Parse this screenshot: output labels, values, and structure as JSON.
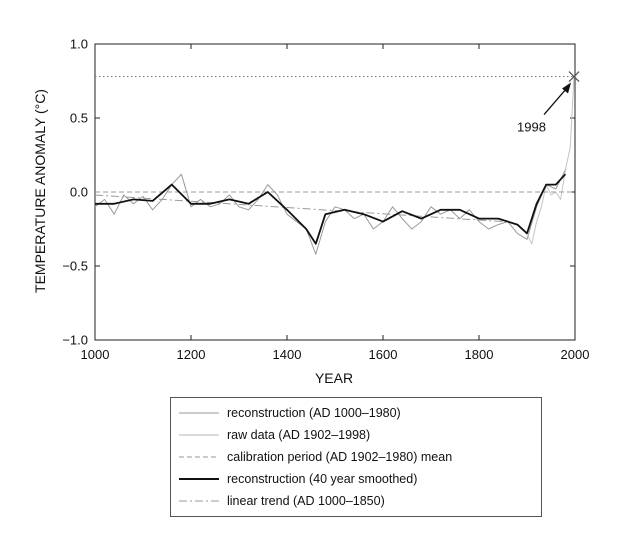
{
  "chart_data": {
    "type": "line",
    "title": "",
    "xlabel": "YEAR",
    "ylabel": "TEMPERATURE ANOMALY (°C)",
    "xlim": [
      1000,
      2000
    ],
    "ylim": [
      -1.0,
      1.0
    ],
    "xticks": [
      "1000",
      "1200",
      "1400",
      "1600",
      "1800",
      "2000"
    ],
    "yticks": [
      "1.0",
      "0.5",
      "0.0",
      "−0.5",
      "−1.0"
    ],
    "xtick_values": [
      1000,
      1200,
      1400,
      1600,
      1800,
      2000
    ],
    "ytick_values": [
      1.0,
      0.5,
      0.0,
      -0.5,
      -1.0
    ],
    "grid": false,
    "legend_placement": "below",
    "annotation": {
      "text": "1998",
      "x": 1998,
      "y": 0.78
    },
    "reference_line": {
      "y": 0.78,
      "style": "dotted"
    },
    "series": [
      {
        "name": "reconstruction (AD 1000–1980)",
        "color": "#9a9a9a",
        "style": "thin-solid",
        "x": [
          1000,
          1020,
          1040,
          1060,
          1080,
          1100,
          1120,
          1140,
          1160,
          1180,
          1200,
          1220,
          1240,
          1260,
          1280,
          1300,
          1320,
          1340,
          1360,
          1380,
          1400,
          1420,
          1440,
          1460,
          1480,
          1500,
          1520,
          1540,
          1560,
          1580,
          1600,
          1620,
          1640,
          1660,
          1680,
          1700,
          1720,
          1740,
          1760,
          1780,
          1800,
          1820,
          1840,
          1860,
          1880,
          1900,
          1920,
          1940,
          1960,
          1980
        ],
        "values": [
          -0.1,
          -0.05,
          -0.15,
          -0.02,
          -0.08,
          -0.03,
          -0.12,
          -0.05,
          0.05,
          0.12,
          -0.1,
          -0.05,
          -0.1,
          -0.08,
          -0.02,
          -0.1,
          -0.12,
          -0.05,
          0.05,
          -0.02,
          -0.15,
          -0.2,
          -0.25,
          -0.42,
          -0.2,
          -0.1,
          -0.12,
          -0.18,
          -0.15,
          -0.25,
          -0.2,
          -0.1,
          -0.18,
          -0.25,
          -0.2,
          -0.1,
          -0.15,
          -0.12,
          -0.18,
          -0.12,
          -0.2,
          -0.25,
          -0.22,
          -0.2,
          -0.28,
          -0.32,
          -0.1,
          0.05,
          0.02,
          0.15
        ]
      },
      {
        "name": "raw data (AD 1902–1998)",
        "color": "#c4c4c4",
        "style": "thin-solid",
        "x": [
          1902,
          1910,
          1920,
          1930,
          1940,
          1950,
          1960,
          1970,
          1980,
          1990,
          1998
        ],
        "values": [
          -0.3,
          -0.35,
          -0.2,
          -0.1,
          0.05,
          -0.02,
          0.0,
          -0.05,
          0.15,
          0.3,
          0.78
        ]
      },
      {
        "name": "calibration period (AD 1902–1980) mean",
        "color": "#9a9a9a",
        "style": "dashed",
        "x": [
          1000,
          2000
        ],
        "values": [
          0.0,
          0.0
        ]
      },
      {
        "name": "reconstruction (40 year smoothed)",
        "color": "#111111",
        "style": "thick-solid",
        "x": [
          1000,
          1040,
          1080,
          1120,
          1160,
          1200,
          1240,
          1280,
          1320,
          1360,
          1400,
          1440,
          1460,
          1480,
          1520,
          1560,
          1600,
          1640,
          1680,
          1720,
          1760,
          1800,
          1840,
          1880,
          1900,
          1920,
          1940,
          1960,
          1980
        ],
        "values": [
          -0.08,
          -0.08,
          -0.05,
          -0.06,
          0.05,
          -0.08,
          -0.08,
          -0.05,
          -0.08,
          0.0,
          -0.12,
          -0.25,
          -0.35,
          -0.15,
          -0.12,
          -0.15,
          -0.2,
          -0.13,
          -0.18,
          -0.12,
          -0.12,
          -0.18,
          -0.18,
          -0.22,
          -0.28,
          -0.08,
          0.05,
          0.05,
          0.12
        ]
      },
      {
        "name": "linear trend (AD 1000–1850)",
        "color": "#9a9a9a",
        "style": "dash-dot",
        "x": [
          1000,
          1850
        ],
        "values": [
          -0.02,
          -0.2
        ]
      }
    ]
  }
}
